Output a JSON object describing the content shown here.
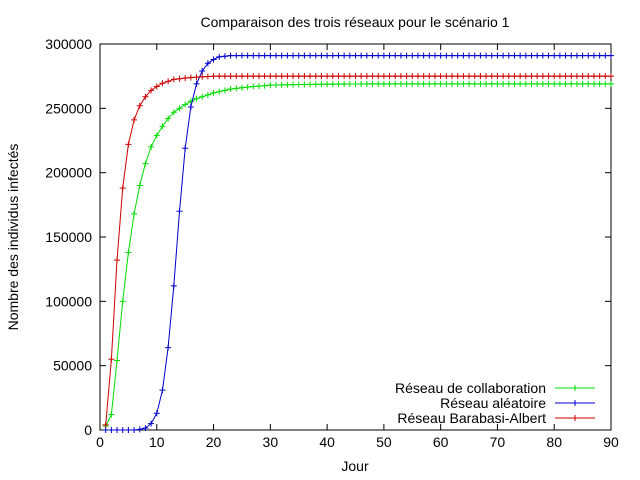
{
  "chart_data": {
    "type": "line",
    "title": "Comparaison des trois réseaux pour le scénario 1",
    "xlabel": "Jour",
    "ylabel": "Nombre des individus infectés",
    "xlim": [
      0,
      90
    ],
    "ylim": [
      0,
      300000
    ],
    "x_ticks": [
      0,
      10,
      20,
      30,
      40,
      50,
      60,
      70,
      80,
      90
    ],
    "y_ticks": [
      0,
      50000,
      100000,
      150000,
      200000,
      250000,
      300000
    ],
    "grid": false,
    "legend_position": "bottom-right",
    "marker": "plus",
    "x": [
      1,
      2,
      3,
      4,
      5,
      6,
      7,
      8,
      9,
      10,
      11,
      12,
      13,
      14,
      15,
      16,
      17,
      18,
      19,
      20,
      21,
      22,
      23,
      24,
      25,
      26,
      27,
      28,
      29,
      30,
      31,
      32,
      33,
      34,
      35,
      36,
      37,
      38,
      39,
      40,
      41,
      42,
      43,
      44,
      45,
      46,
      47,
      48,
      49,
      50,
      51,
      52,
      53,
      54,
      55,
      56,
      57,
      58,
      59,
      60,
      61,
      62,
      63,
      64,
      65,
      66,
      67,
      68,
      69,
      70,
      71,
      72,
      73,
      74,
      75,
      76,
      77,
      78,
      79,
      80,
      81,
      82,
      83,
      84,
      85,
      86,
      87,
      88,
      89,
      90
    ],
    "series": [
      {
        "name": "Réseau de collaboration",
        "color": "#00dd00",
        "values": [
          3000,
          12000,
          54000,
          100000,
          138000,
          168000,
          190000,
          207000,
          220000,
          229000,
          236000,
          242000,
          247000,
          250000,
          253000,
          255500,
          257500,
          259000,
          260500,
          262000,
          263000,
          264000,
          265000,
          265500,
          266000,
          266500,
          267000,
          267300,
          267600,
          268000,
          268100,
          268200,
          268300,
          268400,
          268500,
          268500,
          268600,
          268600,
          268700,
          268700,
          268800,
          268800,
          268800,
          268900,
          268900,
          268900,
          269000,
          269000,
          269000,
          269000,
          269000,
          269000,
          269000,
          269000,
          269000,
          269000,
          269000,
          269000,
          269000,
          269000,
          269000,
          269000,
          269000,
          269000,
          269000,
          269000,
          269000,
          269000,
          269000,
          269000,
          269000,
          269000,
          269000,
          269000,
          269000,
          269000,
          269000,
          269000,
          269000,
          269000,
          269000,
          269000,
          269000,
          269000,
          269000,
          269000,
          269000,
          269000,
          269000,
          269000
        ]
      },
      {
        "name": "Réseau aléatoire",
        "color": "#0000cc",
        "values": [
          0,
          0,
          0,
          0,
          0,
          0,
          500,
          1500,
          5000,
          13000,
          31000,
          64000,
          112000,
          170000,
          219000,
          251000,
          269000,
          279000,
          285000,
          288000,
          290000,
          290500,
          291000,
          291000,
          291000,
          291000,
          291000,
          291000,
          291000,
          291000,
          291000,
          291000,
          291000,
          291000,
          291000,
          291000,
          291000,
          291000,
          291000,
          291000,
          291000,
          291000,
          291000,
          291000,
          291000,
          291000,
          291000,
          291000,
          291000,
          291000,
          291000,
          291000,
          291000,
          291000,
          291000,
          291000,
          291000,
          291000,
          291000,
          291000,
          291000,
          291000,
          291000,
          291000,
          291000,
          291000,
          291000,
          291000,
          291000,
          291000,
          291000,
          291000,
          291000,
          291000,
          291000,
          291000,
          291000,
          291000,
          291000,
          291000,
          291000,
          291000,
          291000,
          291000,
          291000,
          291000,
          291000,
          291000,
          291000,
          291000
        ]
      },
      {
        "name": "Réseau Barabasi-Albert",
        "color": "#cc0000",
        "values": [
          4000,
          55000,
          132000,
          188000,
          222000,
          241000,
          252000,
          259000,
          264000,
          267000,
          269500,
          271000,
          272500,
          273000,
          273500,
          274000,
          274200,
          274500,
          274700,
          275000,
          275000,
          275000,
          275000,
          275000,
          275000,
          275000,
          275000,
          275000,
          275000,
          275000,
          275000,
          275000,
          275000,
          275000,
          275000,
          275000,
          275000,
          275000,
          275000,
          275000,
          275000,
          275000,
          275000,
          275000,
          275000,
          275000,
          275000,
          275000,
          275000,
          275000,
          275000,
          275000,
          275000,
          275000,
          275000,
          275000,
          275000,
          275000,
          275000,
          275000,
          275000,
          275000,
          275000,
          275000,
          275000,
          275000,
          275000,
          275000,
          275000,
          275000,
          275000,
          275000,
          275000,
          275000,
          275000,
          275000,
          275000,
          275000,
          275000,
          275000,
          275000,
          275000,
          275000,
          275000,
          275000,
          275000,
          275000,
          275000,
          275000,
          275000
        ]
      }
    ]
  }
}
